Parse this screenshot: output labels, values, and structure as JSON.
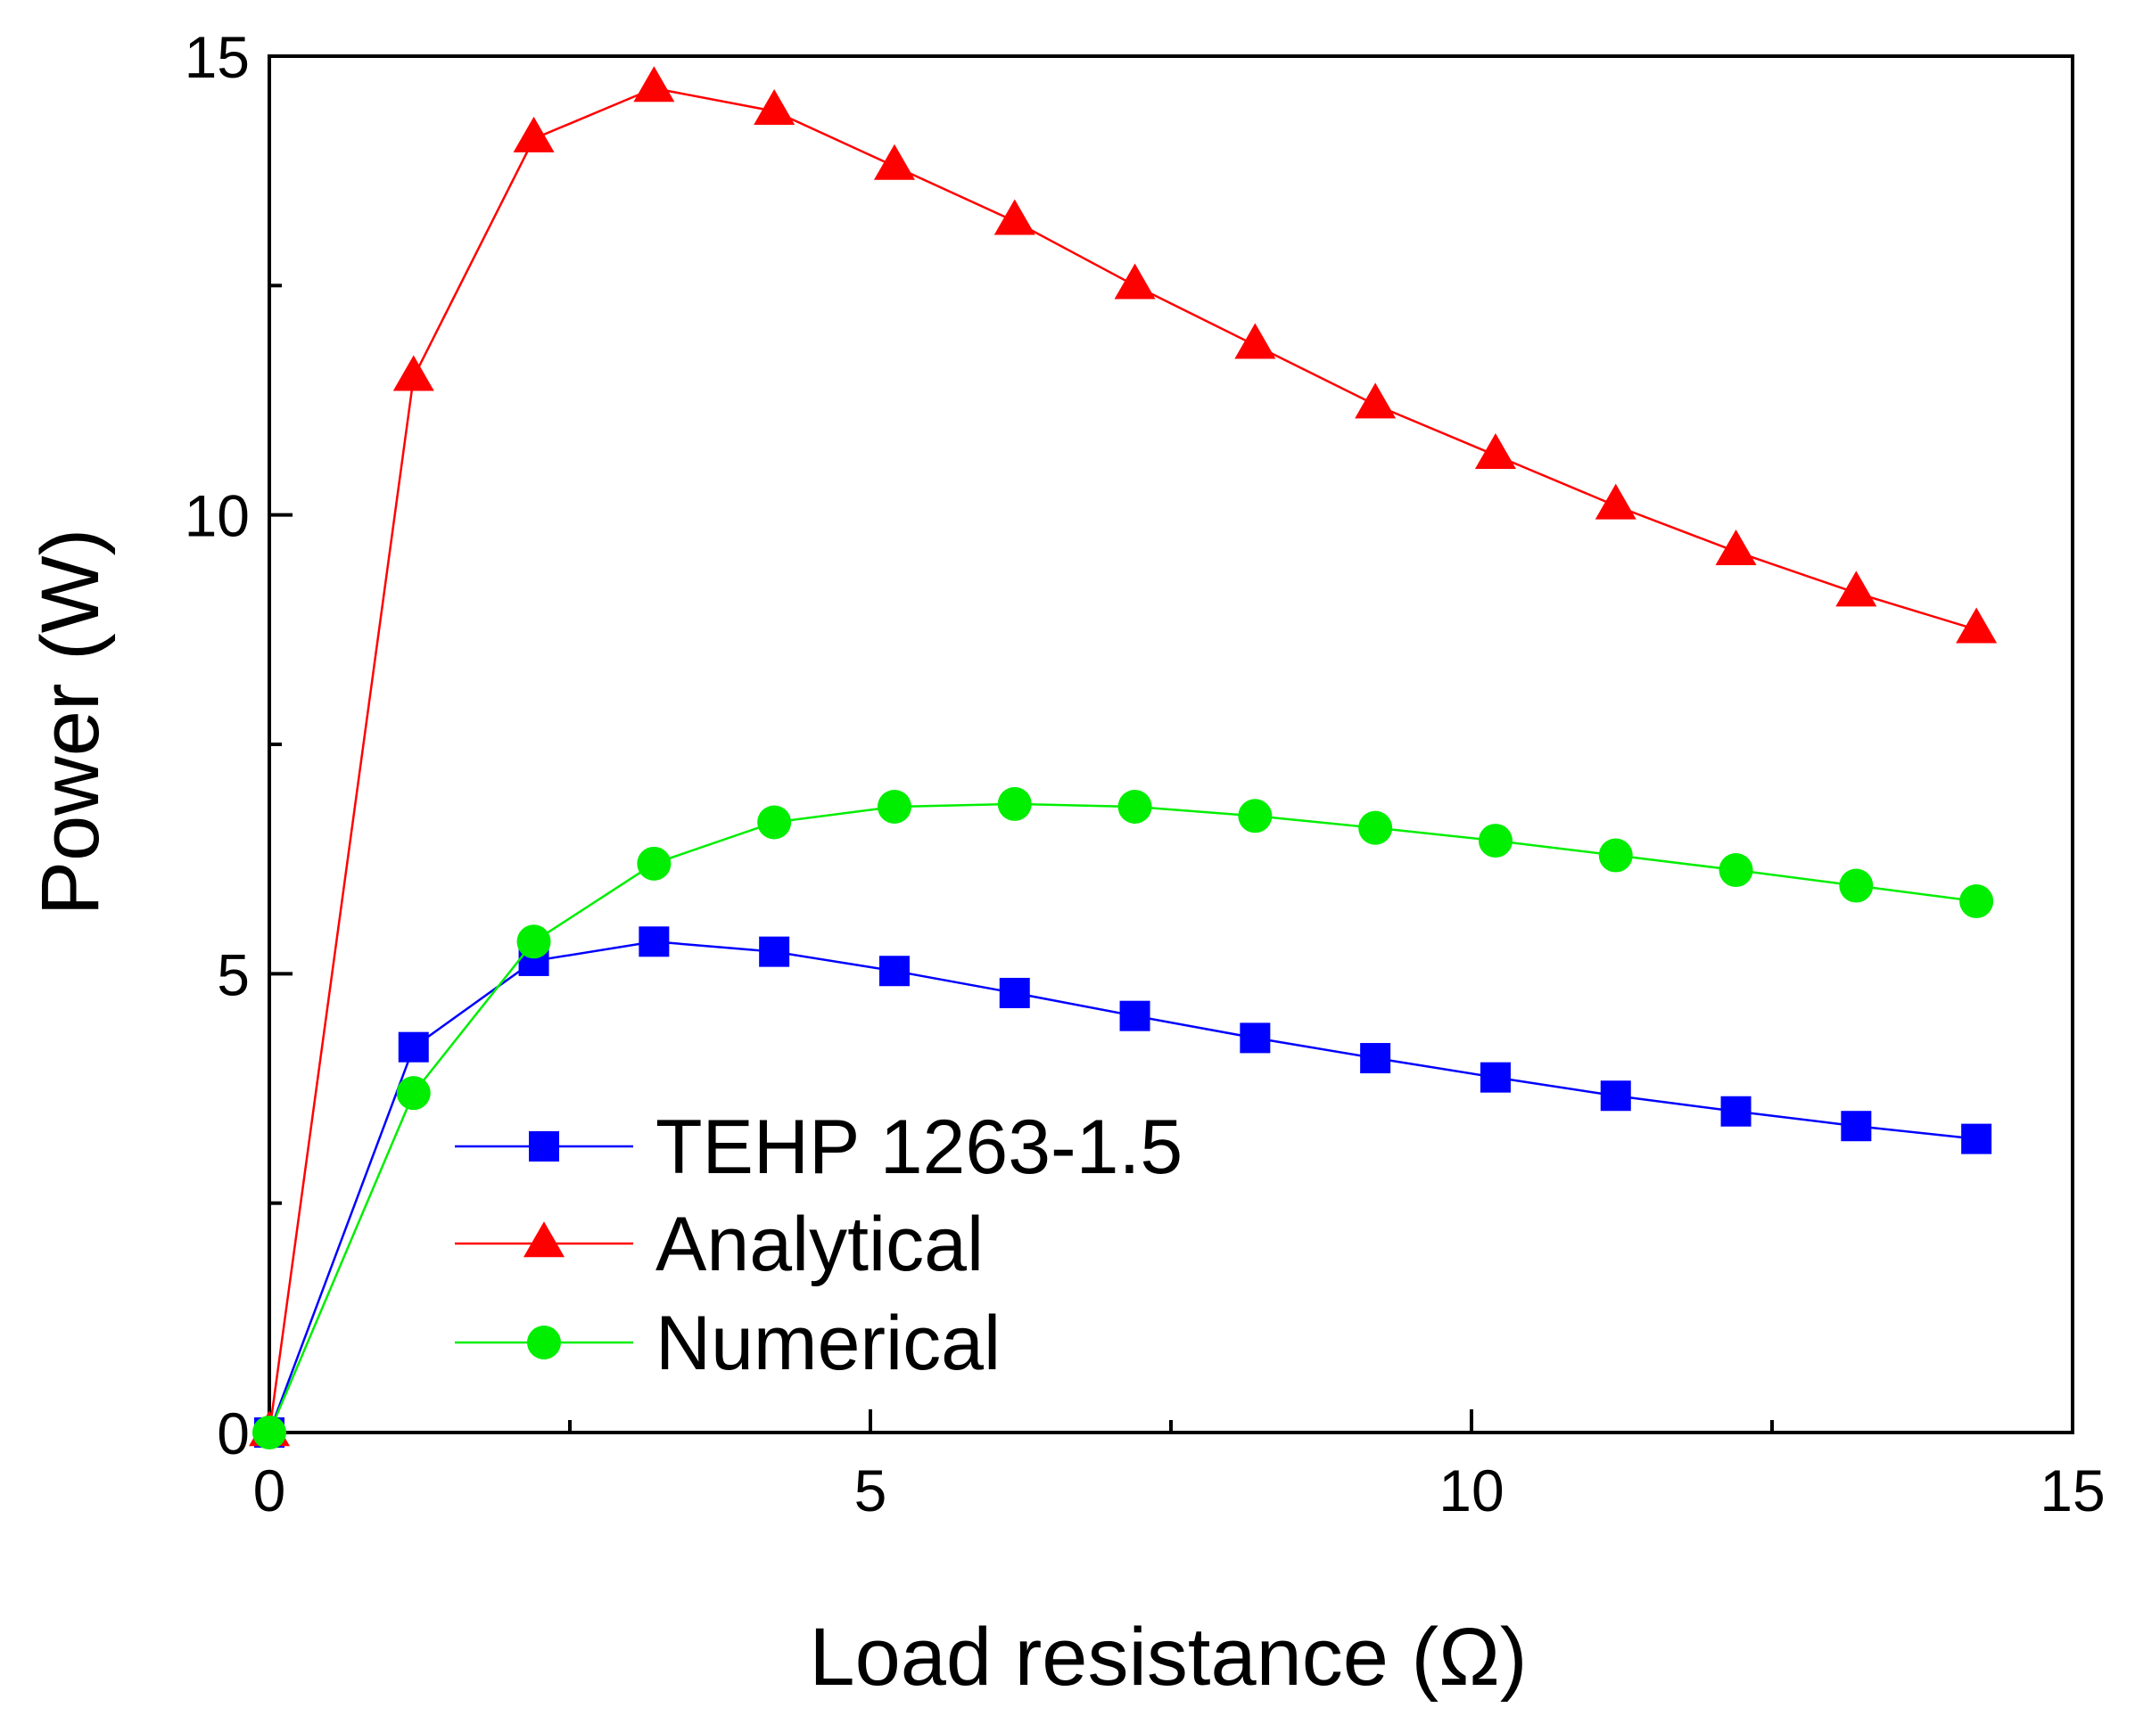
{
  "chart_data": {
    "type": "line",
    "title": "",
    "xlabel": "Load resistance (Ω)",
    "ylabel": "Power (W)",
    "xlim": [
      0,
      15
    ],
    "ylim": [
      0,
      15
    ],
    "x_ticks": [
      0,
      5,
      10,
      15
    ],
    "y_ticks": [
      0,
      5,
      10,
      15
    ],
    "x_tick_labels": [
      "0",
      "5",
      "10",
      "15"
    ],
    "y_tick_labels": [
      "0",
      "5",
      "10",
      "15"
    ],
    "grid": false,
    "legend_position": "bottom-left",
    "series": [
      {
        "name": "TEHP 1263-1.5",
        "color": "#0000ff",
        "marker": "square",
        "x": [
          0,
          1.2,
          2.2,
          3.2,
          4.2,
          5.2,
          6.2,
          7.2,
          8.2,
          9.2,
          10.2,
          11.2,
          12.2,
          13.2,
          14.2
        ],
        "values": [
          0,
          4.2,
          5.14,
          5.35,
          5.24,
          5.03,
          4.79,
          4.54,
          4.3,
          4.08,
          3.87,
          3.67,
          3.5,
          3.34,
          3.2
        ]
      },
      {
        "name": "Analytical",
        "color": "#ff0000",
        "marker": "triangle",
        "x": [
          0,
          1.2,
          2.2,
          3.2,
          4.2,
          5.2,
          6.2,
          7.2,
          8.2,
          9.2,
          10.2,
          11.2,
          12.2,
          13.2,
          14.2
        ],
        "values": [
          0,
          11.5,
          14.1,
          14.65,
          14.4,
          13.8,
          13.2,
          12.5,
          11.85,
          11.2,
          10.65,
          10.1,
          9.6,
          9.15,
          8.75
        ]
      },
      {
        "name": "Numerical",
        "color": "#00ee00",
        "marker": "circle",
        "x": [
          0,
          1.2,
          2.2,
          3.2,
          4.2,
          5.2,
          6.2,
          7.2,
          8.2,
          9.2,
          10.2,
          11.2,
          12.2,
          13.2,
          14.2
        ],
        "values": [
          0,
          3.7,
          5.35,
          6.2,
          6.65,
          6.82,
          6.85,
          6.82,
          6.72,
          6.59,
          6.45,
          6.29,
          6.13,
          5.96,
          5.79
        ]
      }
    ]
  }
}
